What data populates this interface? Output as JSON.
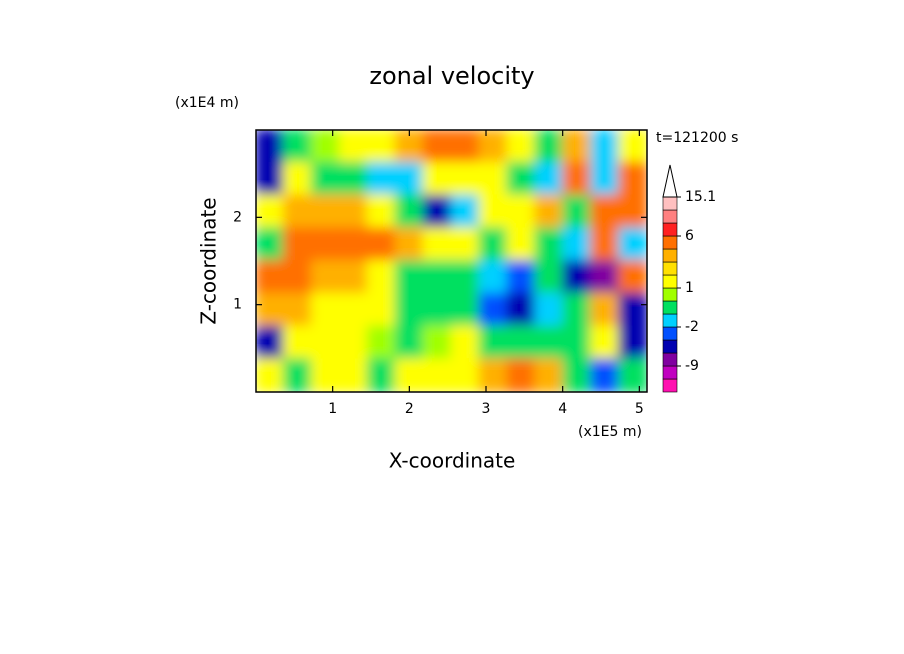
{
  "chart_data": {
    "type": "contour",
    "title": "zonal velocity",
    "x_label": "X-coordinate",
    "y_label": "Z-coordinate",
    "x_unit": "(x1E5 m)",
    "y_unit": "(x1E4 m)",
    "annotation": "t=121200 s",
    "xlim": [
      0,
      5.1
    ],
    "ylim": [
      0,
      3
    ],
    "xticks": [
      1,
      2,
      3,
      4,
      5
    ],
    "yticks": [
      1,
      2
    ],
    "z": [
      [
        -4,
        -1,
        0.5,
        1.5,
        1.5,
        3.5,
        5,
        5,
        3.5,
        1.5,
        -1,
        3.5,
        -2,
        1.5
      ],
      [
        -4.5,
        1.5,
        -1,
        -1,
        -2,
        -1.5,
        1.5,
        1.5,
        1.5,
        -1,
        -2,
        5,
        -2,
        5
      ],
      [
        1.5,
        3.5,
        3.5,
        3.5,
        1.5,
        -1,
        -4,
        -1.5,
        1.5,
        1.5,
        3.5,
        -1,
        5,
        5
      ],
      [
        -1,
        5,
        5,
        5,
        5,
        3.5,
        1.5,
        1.5,
        -0.5,
        1.5,
        -1,
        -2,
        5,
        -2
      ],
      [
        5,
        5,
        3.5,
        3.5,
        1.5,
        -0.5,
        -0.5,
        -1,
        -1.5,
        -2.5,
        -1,
        -4.5,
        -7.5,
        5
      ],
      [
        3.5,
        3.5,
        1.5,
        1.5,
        1.5,
        -0.5,
        -0.5,
        -0.5,
        -2.5,
        -4,
        -1.5,
        -1,
        3.5,
        -4.5
      ],
      [
        -4,
        1.5,
        1.5,
        1.5,
        0.5,
        -1,
        0.5,
        1.5,
        -0.5,
        -1,
        -1,
        -0.5,
        1.5,
        -4
      ],
      [
        1.5,
        -0.5,
        1.5,
        1.5,
        -1,
        1.5,
        1.5,
        1.5,
        3.5,
        5,
        3.5,
        -1,
        -2.5,
        -1
      ]
    ],
    "levels": [
      -15,
      -12,
      -9,
      -6,
      -3,
      -2,
      -1,
      0,
      1,
      2,
      3,
      4,
      6,
      9,
      12,
      15.1
    ],
    "colors": [
      "#ff10b0",
      "#c000c0",
      "#8000a0",
      "#0000b0",
      "#0050ff",
      "#00d0ff",
      "#00e060",
      "#a0ff00",
      "#ffff00",
      "#ffe000",
      "#ffb000",
      "#ff7000",
      "#ff2020",
      "#ff8080",
      "#ffc0c0"
    ],
    "colorbar_ticks": [
      -9,
      -2,
      1,
      6,
      15.1
    ]
  }
}
